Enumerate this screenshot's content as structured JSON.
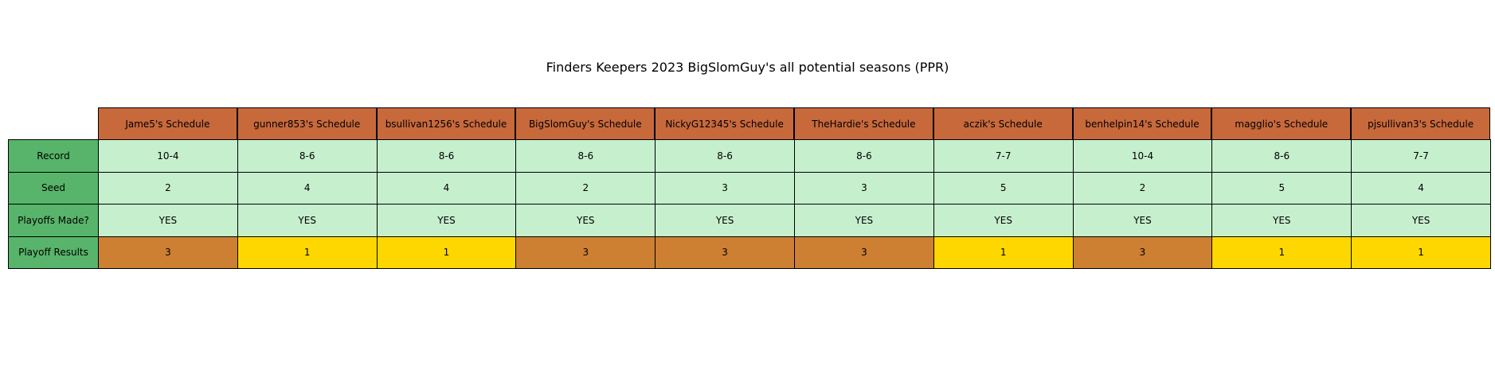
{
  "chart_data": {
    "type": "table",
    "title": "Finders Keepers 2023 BigSlomGuy's all potential seasons (PPR)",
    "columns": [
      "Jame5's Schedule",
      "gunner853's Schedule",
      "bsullivan1256's Schedule",
      "BigSlomGuy's Schedule",
      "NickyG12345's Schedule",
      "TheHardie's Schedule",
      "aczik's Schedule",
      "benhelpin14's Schedule",
      "magglio's Schedule",
      "pjsullivan3's Schedule"
    ],
    "rows": [
      {
        "label": "Record",
        "values": [
          "10-4",
          "8-6",
          "8-6",
          "8-6",
          "8-6",
          "8-6",
          "7-7",
          "10-4",
          "8-6",
          "7-7"
        ]
      },
      {
        "label": "Seed",
        "values": [
          "2",
          "4",
          "4",
          "2",
          "3",
          "3",
          "5",
          "2",
          "5",
          "4"
        ]
      },
      {
        "label": "Playoffs Made?",
        "values": [
          "YES",
          "YES",
          "YES",
          "YES",
          "YES",
          "YES",
          "YES",
          "YES",
          "YES",
          "YES"
        ]
      },
      {
        "label": "Playoff Results",
        "values": [
          "3",
          "1",
          "1",
          "3",
          "3",
          "3",
          "1",
          "3",
          "1",
          "1"
        ]
      }
    ],
    "colors": {
      "header": "#c8693c",
      "row_label": "#57b46a",
      "cell": "#c6efce",
      "result_1": "#ffd700",
      "result_3": "#cd7f32"
    }
  }
}
